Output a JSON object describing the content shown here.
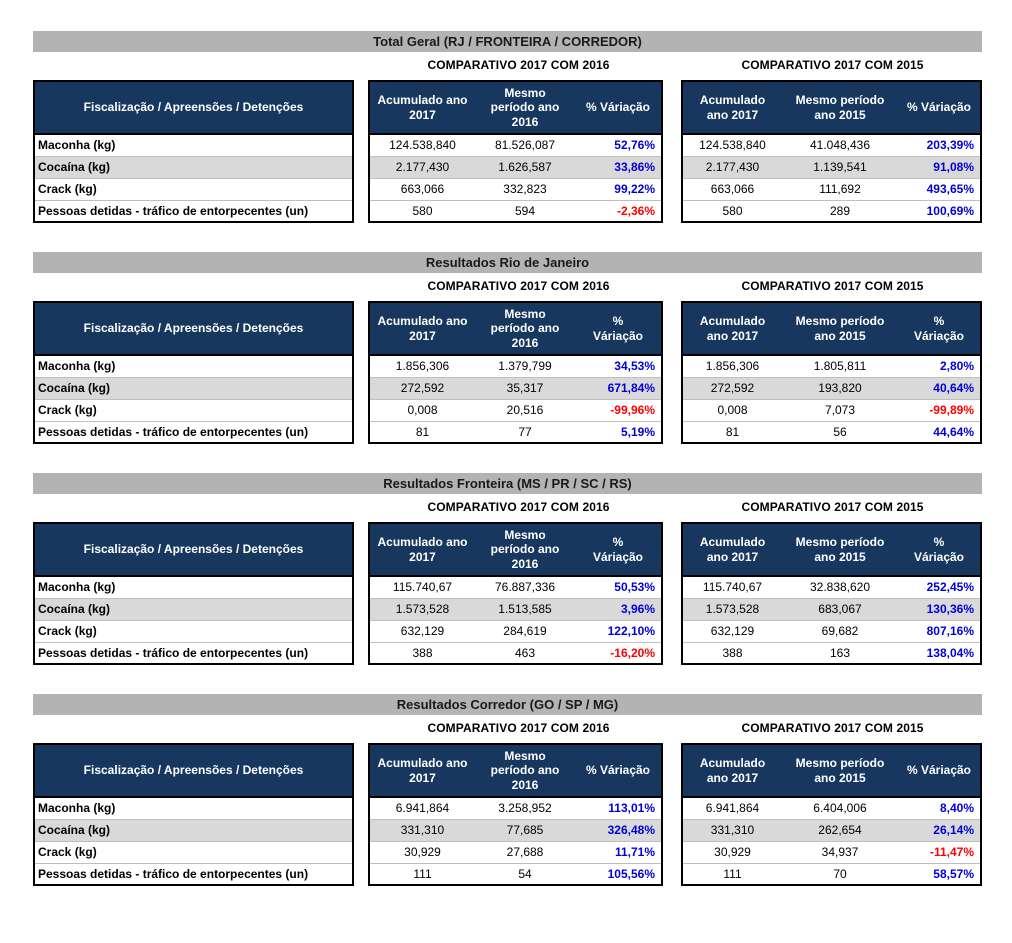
{
  "colors": {
    "table_header_navy": "#17375e",
    "section_bar_gray": "#b3b3b3",
    "row_stripe_gray": "#d9d9d9",
    "positive_variation_blue": "#0000d9",
    "negative_variation_red": "#fe0000"
  },
  "sections": [
    {
      "title": "Total Geral (RJ / FRONTEIRA / CORREDOR)",
      "label_header": "Fiscalização / Apreensões / Detenções",
      "row_labels": [
        "Maconha (kg)",
        "Cocaína (kg)",
        "Crack (kg)",
        "Pessoas detidas - tráfico de entorpecentes (un)"
      ],
      "comparatives": [
        {
          "title": "COMPARATIVO 2017 COM 2016",
          "col_headers": [
            "Acumulado ano\n2017",
            "Mesmo\nperíodo ano\n2016",
            "% Váriação"
          ],
          "rows": [
            {
              "y2017": "124.538,840",
              "prev": "81.526,087",
              "pct": "52,76%",
              "dir": "pos"
            },
            {
              "y2017": "2.177,430",
              "prev": "1.626,587",
              "pct": "33,86%",
              "dir": "pos"
            },
            {
              "y2017": "663,066",
              "prev": "332,823",
              "pct": "99,22%",
              "dir": "pos"
            },
            {
              "y2017": "580",
              "prev": "594",
              "pct": "-2,36%",
              "dir": "neg"
            }
          ]
        },
        {
          "title": "COMPARATIVO 2017 COM 2015",
          "col_headers": [
            "Acumulado\nano 2017",
            "Mesmo período\nano 2015",
            "% Váriação"
          ],
          "rows": [
            {
              "y2017": "124.538,840",
              "prev": "41.048,436",
              "pct": "203,39%",
              "dir": "pos"
            },
            {
              "y2017": "2.177,430",
              "prev": "1.139,541",
              "pct": "91,08%",
              "dir": "pos"
            },
            {
              "y2017": "663,066",
              "prev": "111,692",
              "pct": "493,65%",
              "dir": "pos"
            },
            {
              "y2017": "580",
              "prev": "289",
              "pct": "100,69%",
              "dir": "pos"
            }
          ]
        }
      ]
    },
    {
      "title": "Resultados Rio de Janeiro",
      "label_header": "Fiscalização / Apreensões / Detenções",
      "row_labels": [
        "Maconha (kg)",
        "Cocaína (kg)",
        "Crack (kg)",
        "Pessoas detidas - tráfico de entorpecentes (un)"
      ],
      "comparatives": [
        {
          "title": "COMPARATIVO 2017 COM 2016",
          "col_headers": [
            "Acumulado ano\n2017",
            "Mesmo\nperíodo ano\n2016",
            "%\nVáriação"
          ],
          "rows": [
            {
              "y2017": "1.856,306",
              "prev": "1.379,799",
              "pct": "34,53%",
              "dir": "pos"
            },
            {
              "y2017": "272,592",
              "prev": "35,317",
              "pct": "671,84%",
              "dir": "pos"
            },
            {
              "y2017": "0,008",
              "prev": "20,516",
              "pct": "-99,96%",
              "dir": "neg"
            },
            {
              "y2017": "81",
              "prev": "77",
              "pct": "5,19%",
              "dir": "pos"
            }
          ]
        },
        {
          "title": "COMPARATIVO 2017 COM 2015",
          "col_headers": [
            "Acumulado\nano 2017",
            "Mesmo período\nano 2015",
            "%\nVáriação"
          ],
          "rows": [
            {
              "y2017": "1.856,306",
              "prev": "1.805,811",
              "pct": "2,80%",
              "dir": "pos"
            },
            {
              "y2017": "272,592",
              "prev": "193,820",
              "pct": "40,64%",
              "dir": "pos"
            },
            {
              "y2017": "0,008",
              "prev": "7,073",
              "pct": "-99,89%",
              "dir": "neg"
            },
            {
              "y2017": "81",
              "prev": "56",
              "pct": "44,64%",
              "dir": "pos"
            }
          ]
        }
      ]
    },
    {
      "title": "Resultados Fronteira (MS / PR / SC / RS)",
      "label_header": "Fiscalização / Apreensões / Detenções",
      "row_labels": [
        "Maconha (kg)",
        "Cocaína (kg)",
        "Crack (kg)",
        "Pessoas detidas - tráfico de entorpecentes (un)"
      ],
      "comparatives": [
        {
          "title": "COMPARATIVO 2017 COM 2016",
          "col_headers": [
            "Acumulado ano\n2017",
            "Mesmo\nperíodo ano\n2016",
            "%\nVáriação"
          ],
          "rows": [
            {
              "y2017": "115.740,67",
              "prev": "76.887,336",
              "pct": "50,53%",
              "dir": "pos"
            },
            {
              "y2017": "1.573,528",
              "prev": "1.513,585",
              "pct": "3,96%",
              "dir": "pos"
            },
            {
              "y2017": "632,129",
              "prev": "284,619",
              "pct": "122,10%",
              "dir": "pos"
            },
            {
              "y2017": "388",
              "prev": "463",
              "pct": "-16,20%",
              "dir": "neg"
            }
          ]
        },
        {
          "title": "COMPARATIVO 2017 COM 2015",
          "col_headers": [
            "Acumulado\nano 2017",
            "Mesmo período\nano 2015",
            "%\nVáriação"
          ],
          "rows": [
            {
              "y2017": "115.740,67",
              "prev": "32.838,620",
              "pct": "252,45%",
              "dir": "pos"
            },
            {
              "y2017": "1.573,528",
              "prev": "683,067",
              "pct": "130,36%",
              "dir": "pos"
            },
            {
              "y2017": "632,129",
              "prev": "69,682",
              "pct": "807,16%",
              "dir": "pos"
            },
            {
              "y2017": "388",
              "prev": "163",
              "pct": "138,04%",
              "dir": "pos"
            }
          ]
        }
      ]
    },
    {
      "title": "Resultados Corredor (GO / SP / MG)",
      "label_header": "Fiscalização / Apreensões / Detenções",
      "row_labels": [
        "Maconha (kg)",
        "Cocaína (kg)",
        "Crack (kg)",
        "Pessoas detidas - tráfico de entorpecentes (un)"
      ],
      "comparatives": [
        {
          "title": "COMPARATIVO 2017 COM 2016",
          "col_headers": [
            "Acumulado ano\n2017",
            "Mesmo\nperíodo ano\n2016",
            "% Váriação"
          ],
          "rows": [
            {
              "y2017": "6.941,864",
              "prev": "3.258,952",
              "pct": "113,01%",
              "dir": "pos"
            },
            {
              "y2017": "331,310",
              "prev": "77,685",
              "pct": "326,48%",
              "dir": "pos"
            },
            {
              "y2017": "30,929",
              "prev": "27,688",
              "pct": "11,71%",
              "dir": "pos"
            },
            {
              "y2017": "111",
              "prev": "54",
              "pct": "105,56%",
              "dir": "pos"
            }
          ]
        },
        {
          "title": "COMPARATIVO 2017 COM 2015",
          "col_headers": [
            "Acumulado\nano 2017",
            "Mesmo período\nano 2015",
            "% Váriação"
          ],
          "rows": [
            {
              "y2017": "6.941,864",
              "prev": "6.404,006",
              "pct": "8,40%",
              "dir": "pos"
            },
            {
              "y2017": "331,310",
              "prev": "262,654",
              "pct": "26,14%",
              "dir": "pos"
            },
            {
              "y2017": "30,929",
              "prev": "34,937",
              "pct": "-11,47%",
              "dir": "neg"
            },
            {
              "y2017": "111",
              "prev": "70",
              "pct": "58,57%",
              "dir": "pos"
            }
          ]
        }
      ]
    }
  ]
}
